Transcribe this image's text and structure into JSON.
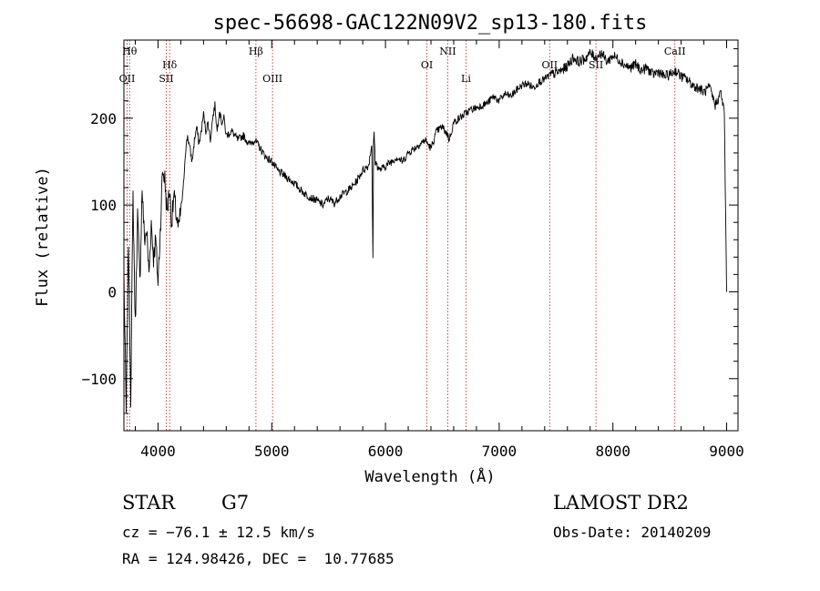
{
  "chart_data": {
    "type": "line",
    "title": "spec-56698-GAC122N09V2_sp13-180.fits",
    "xlabel": "Wavelength (Å)",
    "ylabel": "Flux (relative)",
    "xlim": [
      3700,
      9100
    ],
    "ylim": [
      -160,
      290
    ],
    "xticks": [
      4000,
      5000,
      6000,
      7000,
      8000,
      9000
    ],
    "yticks": [
      -100,
      0,
      100,
      200
    ],
    "xtick_labels": [
      "4000",
      "5000",
      "6000",
      "7000",
      "8000",
      "9000"
    ],
    "ytick_labels": [
      "−100",
      "0",
      "100",
      "200"
    ],
    "series": [
      {
        "x": [
          3700,
          3720,
          3740,
          3760,
          3780,
          3800,
          3820,
          3840,
          3860,
          3880,
          3900,
          3920,
          3940,
          3960,
          3980,
          4000,
          4020,
          4040,
          4060,
          4080,
          4100,
          4120,
          4140,
          4160,
          4180,
          4200,
          4220,
          4240,
          4260,
          4280,
          4300,
          4320,
          4340,
          4360,
          4380,
          4400,
          4420,
          4440,
          4460,
          4480,
          4500,
          4520,
          4540,
          4560,
          4580,
          4600,
          4650,
          4700,
          4750,
          4800,
          4850,
          4900,
          4950,
          5000,
          5050,
          5100,
          5150,
          5200,
          5250,
          5300,
          5350,
          5400,
          5450,
          5500,
          5550,
          5600,
          5650,
          5700,
          5750,
          5800,
          5850,
          5880,
          5890,
          5895,
          5900,
          5910,
          5950,
          6000,
          6050,
          6100,
          6150,
          6200,
          6250,
          6300,
          6350,
          6400,
          6450,
          6500,
          6550,
          6560,
          6600,
          6650,
          6700,
          6750,
          6800,
          6850,
          6900,
          6950,
          7000,
          7050,
          7100,
          7150,
          7200,
          7250,
          7300,
          7350,
          7400,
          7450,
          7500,
          7550,
          7600,
          7650,
          7700,
          7750,
          7800,
          7850,
          7900,
          7950,
          8000,
          8050,
          8100,
          8150,
          8200,
          8250,
          8300,
          8350,
          8400,
          8450,
          8500,
          8550,
          8600,
          8650,
          8700,
          8750,
          8800,
          8850,
          8900,
          8950,
          8980,
          9000
        ],
        "values": [
          20,
          -140,
          60,
          -120,
          110,
          -40,
          90,
          10,
          120,
          60,
          70,
          20,
          80,
          40,
          60,
          10,
          70,
          140,
          130,
          90,
          120,
          80,
          110,
          90,
          70,
          95,
          115,
          160,
          180,
          165,
          150,
          175,
          190,
          170,
          185,
          205,
          185,
          195,
          175,
          200,
          215,
          185,
          210,
          195,
          200,
          180,
          185,
          175,
          180,
          170,
          175,
          165,
          155,
          150,
          140,
          135,
          130,
          125,
          118,
          112,
          108,
          105,
          100,
          108,
          102,
          110,
          115,
          120,
          128,
          140,
          145,
          170,
          40,
          170,
          185,
          150,
          140,
          145,
          150,
          155,
          150,
          160,
          165,
          170,
          175,
          165,
          185,
          190,
          180,
          175,
          195,
          200,
          205,
          210,
          212,
          215,
          218,
          225,
          220,
          228,
          225,
          232,
          238,
          240,
          235,
          242,
          245,
          250,
          252,
          255,
          260,
          270,
          265,
          268,
          275,
          270,
          275,
          265,
          272,
          268,
          262,
          258,
          262,
          255,
          258,
          250,
          254,
          248,
          250,
          255,
          248,
          245,
          238,
          235,
          230,
          235,
          215,
          230,
          205,
          0
        ]
      }
    ],
    "lines": [
      {
        "x": 3728,
        "label": "OII"
      },
      {
        "x": 3750,
        "label": "Hθ"
      },
      {
        "x": 4072,
        "label": "SII"
      },
      {
        "x": 4102,
        "label": "Hδ"
      },
      {
        "x": 4861,
        "label": "Hβ"
      },
      {
        "x": 5007,
        "label": "OIII"
      },
      {
        "x": 6364,
        "label": "OI"
      },
      {
        "x": 6548,
        "label": "NII"
      },
      {
        "x": 6708,
        "label": "Li"
      },
      {
        "x": 7444,
        "label": "OII"
      },
      {
        "x": 7851,
        "label": "SII"
      },
      {
        "x": 8545,
        "label": "CaII"
      }
    ]
  },
  "info": {
    "object_type": "STAR",
    "subclass": "G7",
    "survey": "LAMOST DR2",
    "cz": "cz = −76.1 ± 12.5 km/s",
    "obs_date": "Obs-Date: 20140209",
    "coords": "RA = 124.98426, DEC =  10.77685"
  },
  "colors": {
    "spectrum": "#000000",
    "line_marker": "#b02020",
    "axis": "#000000"
  }
}
